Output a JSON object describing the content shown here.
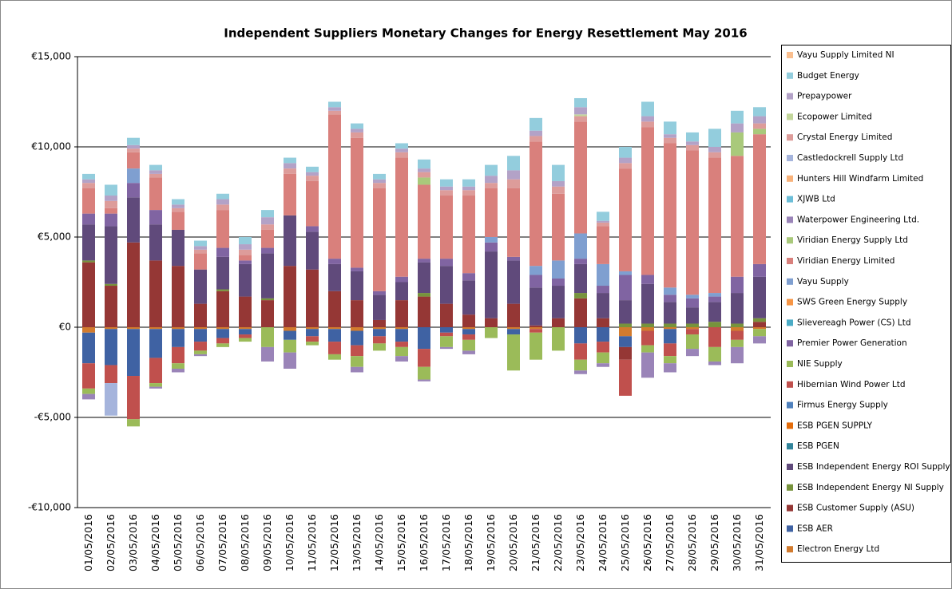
{
  "chart_data": {
    "type": "stacked-bar",
    "title": "Independent Suppliers Monetary Changes  for Energy Resettlement  May 2016",
    "categories": [
      "01/05/2016",
      "02/05/2016",
      "03/05/2016",
      "04/05/2016",
      "05/05/2016",
      "06/05/2016",
      "07/05/2016",
      "08/05/2016",
      "09/05/2016",
      "10/05/2016",
      "11/05/2016",
      "12/05/2016",
      "13/05/2016",
      "14/05/2016",
      "15/05/2016",
      "16/05/2016",
      "17/05/2016",
      "18/05/2016",
      "19/05/2016",
      "20/05/2016",
      "21/05/2016",
      "22/05/2016",
      "23/05/2016",
      "24/05/2016",
      "25/05/2016",
      "26/05/2016",
      "27/05/2016",
      "28/05/2016",
      "29/05/2016",
      "30/05/2016",
      "31/05/2016"
    ],
    "ylim": [
      -10000,
      15000
    ],
    "yticks": [
      {
        "value": -10000,
        "label": "-€10,000"
      },
      {
        "value": -5000,
        "label": "-€5,000"
      },
      {
        "value": 0,
        "label": "€0"
      },
      {
        "value": 5000,
        "label": "€5,000"
      },
      {
        "value": 10000,
        "label": "€10,000"
      },
      {
        "value": 15000,
        "label": "€15,000"
      }
    ],
    "grid": true,
    "legend": "right",
    "series": [
      {
        "name": "Electron Energy Ltd",
        "color": "#d27b2e",
        "values": [
          -300,
          -100,
          -100,
          -100,
          -100,
          -100,
          -100,
          -100,
          0,
          -200,
          -100,
          -100,
          -200,
          -100,
          -100,
          0,
          0,
          -100,
          0,
          -100,
          -100,
          0,
          0,
          0,
          -500,
          -200,
          -100,
          -100,
          0,
          -200,
          -100
        ]
      },
      {
        "name": "ESB AER",
        "color": "#3f62a3",
        "values": [
          -1700,
          -2000,
          -2600,
          -1600,
          -1000,
          -700,
          -500,
          -300,
          0,
          -500,
          -400,
          -700,
          -800,
          -400,
          -700,
          -1200,
          -300,
          -300,
          0,
          -300,
          0,
          0,
          -900,
          -800,
          -600,
          0,
          -800,
          0,
          0,
          0,
          0
        ]
      },
      {
        "name": "ESB Customer Supply (ASU)",
        "color": "#953735",
        "values": [
          3600,
          2300,
          4700,
          3700,
          3400,
          1300,
          2000,
          1700,
          1500,
          3400,
          3200,
          2000,
          1500,
          400,
          1500,
          1700,
          1300,
          700,
          500,
          1300,
          100,
          500,
          1600,
          500,
          -700,
          0,
          0,
          0,
          0,
          0,
          300
        ]
      },
      {
        "name": "ESB Independent Energy NI Supply",
        "color": "#77933c",
        "values": [
          100,
          100,
          0,
          0,
          0,
          0,
          100,
          0,
          100,
          0,
          0,
          0,
          0,
          0,
          0,
          200,
          0,
          0,
          0,
          0,
          0,
          0,
          300,
          0,
          200,
          200,
          200,
          200,
          300,
          200,
          200
        ]
      },
      {
        "name": "ESB Independent Energy ROI Supply",
        "color": "#604a7b",
        "values": [
          2000,
          3200,
          2500,
          2000,
          2000,
          1900,
          1800,
          1800,
          2500,
          2800,
          2100,
          1500,
          1600,
          1400,
          1000,
          1700,
          2100,
          1900,
          3700,
          2400,
          2100,
          1800,
          1600,
          1400,
          1300,
          2200,
          1200,
          900,
          1100,
          1700,
          2300
        ]
      },
      {
        "name": "ESB PGEN",
        "color": "#31849b",
        "values": [
          0,
          0,
          0,
          0,
          0,
          0,
          0,
          0,
          0,
          0,
          0,
          0,
          0,
          0,
          0,
          0,
          0,
          0,
          0,
          0,
          0,
          0,
          0,
          0,
          0,
          0,
          0,
          0,
          0,
          0,
          0
        ]
      },
      {
        "name": "ESB PGEN SUPPLY",
        "color": "#e46c0a",
        "values": [
          0,
          0,
          0,
          0,
          0,
          0,
          0,
          0,
          0,
          0,
          0,
          0,
          0,
          0,
          0,
          0,
          0,
          0,
          0,
          0,
          0,
          0,
          0,
          0,
          0,
          0,
          0,
          0,
          0,
          0,
          0
        ]
      },
      {
        "name": "Firmus Energy Supply",
        "color": "#4f81bd",
        "values": [
          0,
          0,
          0,
          0,
          0,
          0,
          0,
          0,
          0,
          0,
          0,
          0,
          0,
          0,
          0,
          0,
          0,
          0,
          0,
          0,
          0,
          0,
          0,
          0,
          0,
          0,
          0,
          0,
          0,
          0,
          0
        ]
      },
      {
        "name": "Hibernian Wind Power Ltd",
        "color": "#c0504d",
        "values": [
          -1400,
          -1000,
          -2400,
          -1400,
          -900,
          -500,
          -300,
          -200,
          0,
          0,
          -300,
          -700,
          -600,
          -400,
          -300,
          -1000,
          -200,
          -300,
          0,
          0,
          -200,
          0,
          -900,
          -600,
          -2000,
          -800,
          -700,
          -300,
          -1100,
          -500,
          0
        ]
      },
      {
        "name": "NIE Supply",
        "color": "#9bbb59",
        "values": [
          -300,
          0,
          -400,
          -200,
          -300,
          -200,
          -200,
          -200,
          -1100,
          -700,
          -200,
          -300,
          -600,
          -400,
          -500,
          -700,
          -600,
          -600,
          -600,
          -2000,
          -1500,
          -1300,
          -600,
          -600,
          0,
          -400,
          -400,
          -800,
          -800,
          -400,
          -400
        ]
      },
      {
        "name": "Premier Power Generation",
        "color": "#8064a2",
        "values": [
          600,
          700,
          800,
          800,
          0,
          0,
          500,
          200,
          300,
          0,
          300,
          300,
          200,
          200,
          300,
          200,
          400,
          400,
          500,
          200,
          700,
          400,
          300,
          400,
          1400,
          500,
          400,
          500,
          300,
          900,
          700
        ]
      },
      {
        "name": "Slievereagh Power (CS) Ltd",
        "color": "#4bacc6",
        "values": [
          0,
          0,
          0,
          0,
          0,
          0,
          0,
          0,
          0,
          0,
          0,
          0,
          0,
          0,
          0,
          0,
          0,
          0,
          0,
          0,
          0,
          0,
          0,
          0,
          0,
          0,
          0,
          0,
          0,
          0,
          0
        ]
      },
      {
        "name": "SWS Green Energy Supply",
        "color": "#f79646",
        "values": [
          0,
          0,
          0,
          0,
          0,
          0,
          0,
          0,
          0,
          0,
          0,
          0,
          0,
          0,
          0,
          0,
          0,
          0,
          0,
          0,
          0,
          0,
          0,
          0,
          0,
          0,
          0,
          0,
          0,
          0,
          0
        ]
      },
      {
        "name": "Vayu Supply",
        "color": "#7f9fd0",
        "values": [
          0,
          0,
          800,
          0,
          0,
          0,
          0,
          0,
          0,
          0,
          0,
          0,
          0,
          0,
          0,
          0,
          0,
          0,
          300,
          0,
          500,
          1000,
          1400,
          1200,
          200,
          0,
          400,
          200,
          200,
          0,
          0
        ]
      },
      {
        "name": "Viridian Energy Limited",
        "color": "#d9807c",
        "values": [
          1400,
          300,
          900,
          1800,
          1000,
          900,
          2100,
          300,
          1000,
          2300,
          2500,
          8000,
          7200,
          5700,
          6600,
          4100,
          3500,
          4300,
          2700,
          3800,
          6900,
          3700,
          6200,
          2100,
          5700,
          8200,
          8000,
          8000,
          7500,
          6700,
          7200
        ]
      },
      {
        "name": "Viridian Energy Supply Ltd",
        "color": "#a9c97b",
        "values": [
          0,
          0,
          0,
          0,
          0,
          0,
          0,
          0,
          0,
          0,
          0,
          0,
          0,
          0,
          0,
          400,
          0,
          0,
          0,
          0,
          0,
          0,
          0,
          0,
          0,
          0,
          0,
          0,
          0,
          1300,
          300
        ]
      },
      {
        "name": "Waterpower Engineering Ltd.",
        "color": "#9a84b8",
        "values": [
          -300,
          0,
          0,
          -100,
          -200,
          -100,
          0,
          0,
          -800,
          -900,
          0,
          0,
          -300,
          0,
          -300,
          -100,
          -100,
          -200,
          0,
          0,
          0,
          0,
          -200,
          -200,
          0,
          -1400,
          -500,
          -400,
          -200,
          -900,
          -400
        ]
      },
      {
        "name": "XJWB Ltd",
        "color": "#6cbed8",
        "values": [
          0,
          0,
          0,
          0,
          0,
          0,
          0,
          0,
          0,
          0,
          0,
          0,
          0,
          0,
          0,
          0,
          0,
          0,
          0,
          0,
          0,
          0,
          0,
          0,
          0,
          0,
          0,
          0,
          0,
          0,
          0
        ]
      },
      {
        "name": "Hunters Hill Windfarm Limited",
        "color": "#f9b27a",
        "values": [
          0,
          0,
          0,
          0,
          0,
          0,
          0,
          0,
          0,
          0,
          0,
          0,
          0,
          0,
          0,
          0,
          0,
          0,
          0,
          0,
          0,
          0,
          0,
          0,
          0,
          0,
          0,
          0,
          0,
          0,
          0
        ]
      },
      {
        "name": "Castledockrell Supply Ltd",
        "color": "#a5b4dc",
        "values": [
          0,
          -1800,
          0,
          0,
          0,
          0,
          0,
          0,
          0,
          0,
          0,
          0,
          0,
          0,
          0,
          0,
          0,
          0,
          0,
          0,
          0,
          0,
          0,
          0,
          0,
          0,
          0,
          0,
          0,
          0,
          0
        ]
      },
      {
        "name": "Crystal Energy Limited",
        "color": "#dd9c9a",
        "values": [
          300,
          400,
          200,
          200,
          200,
          200,
          300,
          300,
          300,
          300,
          300,
          200,
          300,
          300,
          300,
          300,
          300,
          300,
          300,
          500,
          300,
          400,
          300,
          200,
          300,
          300,
          300,
          300,
          300,
          0,
          300
        ]
      },
      {
        "name": "Ecopower Limited",
        "color": "#c3d69b",
        "values": [
          0,
          0,
          0,
          0,
          0,
          0,
          0,
          0,
          0,
          0,
          0,
          0,
          0,
          0,
          0,
          0,
          0,
          0,
          0,
          0,
          0,
          0,
          100,
          0,
          0,
          0,
          0,
          0,
          0,
          0,
          0
        ]
      },
      {
        "name": "Prepaypower",
        "color": "#b3a2c7",
        "values": [
          200,
          300,
          200,
          200,
          200,
          200,
          300,
          300,
          400,
          300,
          200,
          200,
          200,
          200,
          200,
          200,
          200,
          200,
          400,
          500,
          300,
          300,
          400,
          100,
          300,
          300,
          200,
          200,
          300,
          500,
          400
        ]
      },
      {
        "name": "Budget Energy",
        "color": "#93cddd",
        "values": [
          300,
          600,
          400,
          300,
          300,
          300,
          300,
          400,
          400,
          300,
          300,
          300,
          300,
          300,
          300,
          500,
          400,
          400,
          600,
          800,
          700,
          900,
          500,
          500,
          600,
          800,
          700,
          500,
          1000,
          700,
          500
        ]
      },
      {
        "name": "Vayu Supply Limited NI",
        "color": "#fabf8f",
        "values": [
          0,
          0,
          0,
          0,
          0,
          0,
          0,
          0,
          0,
          0,
          0,
          0,
          0,
          0,
          0,
          0,
          0,
          0,
          0,
          0,
          0,
          0,
          0,
          0,
          0,
          0,
          0,
          0,
          0,
          0,
          0
        ]
      }
    ]
  }
}
